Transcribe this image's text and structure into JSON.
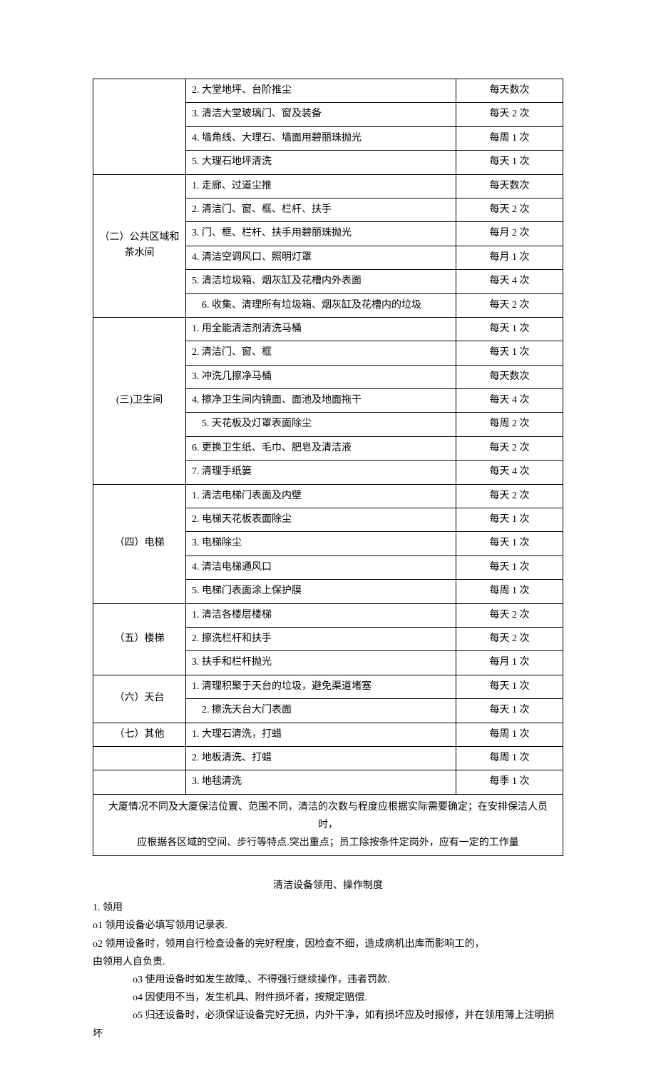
{
  "table": {
    "sections": [
      {
        "title": "",
        "noLabel": true,
        "rows": [
          {
            "item": "2. 大堂地坪、台阶推尘",
            "freq": "每天数次"
          },
          {
            "item": "3. 清洁大堂玻璃门、窗及装备",
            "freq": "每天 2 次"
          },
          {
            "item": "4. 墙角线、大理石、墙面用碧丽珠抛光",
            "freq": "每周 1 次"
          },
          {
            "item": "5. 大理石地坪清洗",
            "freq": "每天 1 次"
          }
        ]
      },
      {
        "title": "（二）公共区域和茶水间",
        "rows": [
          {
            "item": "1. 走廊、过道尘推",
            "freq": "每天数次"
          },
          {
            "item": "2. 清洁门、窗、框、栏杆、扶手",
            "freq": "每天 2 次"
          },
          {
            "item": "3. 门、框、栏杆、扶手用碧丽珠抛光",
            "freq": "每月 2 次"
          },
          {
            "item": "4. 清洁空调风口、照明灯罩",
            "freq": "每月 1 次"
          },
          {
            "item": "5. 清洁垃圾箱、烟灰缸及花槽内外表面",
            "freq": "每天 4 次"
          },
          {
            "item": "　6. 收集、清理所有垃圾箱、烟灰缸及花槽内的垃圾",
            "freq": "每天 2 次"
          }
        ]
      },
      {
        "title": "(三)卫生间",
        "rows": [
          {
            "item": "1. 用全能清洁剂清洗马桶",
            "freq": "每天 1 次"
          },
          {
            "item": "2. 清洁门、窗、框",
            "freq": "每天 1 次"
          },
          {
            "item": "3. 冲洗几擦净马桶",
            "freq": "每天数次"
          },
          {
            "item": "4. 擦净卫生间内镜面、面池及地面拖干",
            "freq": "每天 4 次"
          },
          {
            "item": "　5. 天花板及灯罩表面除尘",
            "freq": "每周 2 次"
          },
          {
            "item": "6. 更换卫生纸、毛巾、肥皂及清洁液",
            "freq": "每天 2 次"
          },
          {
            "item": "7. 清理手纸篓",
            "freq": "每天 4 次"
          }
        ]
      },
      {
        "title": "（四）电梯",
        "rows": [
          {
            "item": "1. 清洁电梯门表面及内壁",
            "freq": "每天 2 次"
          },
          {
            "item": "2. 电梯天花板表面除尘",
            "freq": "每天 1 次"
          },
          {
            "item": "3. 电梯除尘",
            "freq": "每天 1 次"
          },
          {
            "item": "4. 清洁电梯通风口",
            "freq": "每天 1 次"
          },
          {
            "item": "5. 电梯门表面涂上保护膜",
            "freq": "每周 1 次"
          }
        ]
      },
      {
        "title": "（五）楼梯",
        "rows": [
          {
            "item": "1. 清洁各楼层楼梯",
            "freq": "每天 2 次"
          },
          {
            "item": "2. 擦洗栏杆和扶手",
            "freq": "每天 2 次"
          },
          {
            "item": "3. 扶手和栏杆抛光",
            "freq": "每月 1 次"
          }
        ]
      },
      {
        "title": "（六）天台",
        "rows": [
          {
            "item": "1. 清理积聚于天台的垃圾，避免渠道堵塞",
            "freq": "每天 1 次"
          },
          {
            "item": "　2. 擦洗天台大门表面",
            "freq": "每天 1 次"
          }
        ]
      },
      {
        "title": "（七）其他",
        "rowspan": 1,
        "rows": [
          {
            "item": "1. 大理石清洗，打蜡",
            "freq": "每周 1 次"
          }
        ]
      },
      {
        "title": "",
        "noLabel": true,
        "emptyFirst": true,
        "rows": [
          {
            "item": "2. 地板清洗、打蜡",
            "freq": "每周 1 次"
          },
          {
            "item": "3. 地毯清洗",
            "freq": "每季 1 次"
          }
        ]
      }
    ],
    "footer": [
      "大厦情况不同及大厦保洁位置、范围不同，清洁的次数与程度应根据实际需要确定；在安排保洁人员时，",
      "应根据各区域的空间、步行等特点.突出重点；员工除按条件定岗外，应有一定的工作量"
    ]
  },
  "sectionTitle": "清洁设备领用、操作制度",
  "body": {
    "lines": [
      {
        "text": "1. 领用",
        "ind": false
      },
      {
        "text": "o1 领用设备必填写领用记录表.",
        "ind": false
      },
      {
        "text": "o2 领用设备时，领用自行检查设备的完好程度，因检查不细，造成病机出库而影响工的，",
        "ind": false
      },
      {
        "text": "由领用人自负责.",
        "ind": false
      },
      {
        "text": "o3 使用设备时如发生故障,、不得强行继续操作，违者罚款.",
        "ind": true
      },
      {
        "text": "o4 因使用不当，发生机具、附件损坏者，按規定赔偿.",
        "ind": true
      },
      {
        "text": "o5 归还设备时，必须保证设备完好无损，内外干净，如有损坏应及时报修，并在领用薄上注明损坏",
        "ind": true
      }
    ]
  }
}
